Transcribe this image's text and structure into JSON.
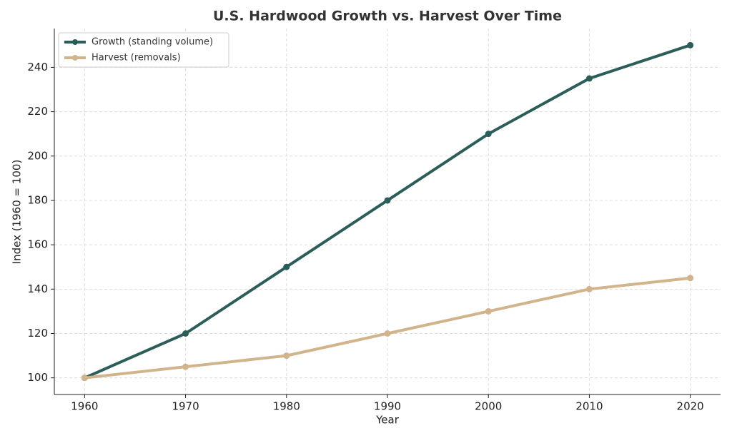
{
  "chart_data": {
    "type": "line",
    "title": "U.S. Hardwood Growth vs. Harvest Over Time",
    "x_label": "Year",
    "y_label": "Index (1960 = 100)",
    "x": [
      1960,
      1970,
      1980,
      1990,
      2000,
      2010,
      2020
    ],
    "series": [
      {
        "name": "Growth (standing volume)",
        "color": "#2b5d59",
        "values": [
          100,
          120,
          150,
          180,
          210,
          235,
          250
        ]
      },
      {
        "name": "Harvest (removals)",
        "color": "#d2b48c",
        "values": [
          100,
          105,
          110,
          120,
          130,
          140,
          145
        ]
      }
    ],
    "xlim": [
      1957,
      2023
    ],
    "ylim": [
      92.5,
      257.5
    ],
    "xticks": [
      1960,
      1970,
      1980,
      1990,
      2000,
      2010,
      2020
    ],
    "yticks": [
      100,
      120,
      140,
      160,
      180,
      200,
      220,
      240
    ],
    "grid": true,
    "legend": "upper-left"
  }
}
